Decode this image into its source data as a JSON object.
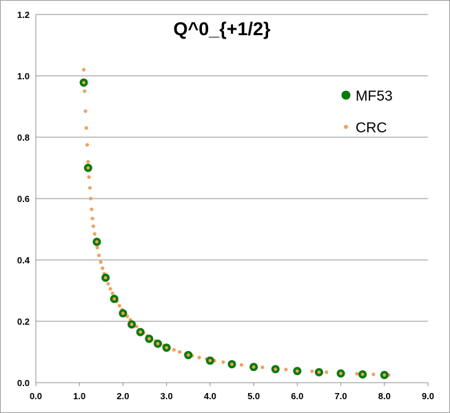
{
  "chart_data": {
    "type": "scatter",
    "title": "Q^0_{+1/2}",
    "xlabel": "",
    "ylabel": "",
    "xlim": [
      0,
      9
    ],
    "ylim": [
      0,
      1.2
    ],
    "x_ticks": [
      "0.0",
      "1.0",
      "2.0",
      "3.0",
      "4.0",
      "5.0",
      "6.0",
      "7.0",
      "8.0",
      "9.0"
    ],
    "y_ticks": [
      "0.0",
      "0.2",
      "0.4",
      "0.6",
      "0.8",
      "1.0",
      "1.2"
    ],
    "grid": "horizontal",
    "legend_position": "right",
    "series": [
      {
        "name": "MF53",
        "color": "#0a7a0a",
        "marker": "large-circle",
        "points": [
          [
            1.1,
            0.978
          ],
          [
            1.2,
            0.7
          ],
          [
            1.4,
            0.459
          ],
          [
            1.6,
            0.342
          ],
          [
            1.8,
            0.273
          ],
          [
            2.0,
            0.226
          ],
          [
            2.2,
            0.19
          ],
          [
            2.4,
            0.165
          ],
          [
            2.6,
            0.143
          ],
          [
            2.8,
            0.127
          ],
          [
            3.0,
            0.114
          ],
          [
            3.5,
            0.09
          ],
          [
            4.0,
            0.072
          ],
          [
            4.5,
            0.06
          ],
          [
            5.0,
            0.051
          ],
          [
            5.5,
            0.044
          ],
          [
            6.0,
            0.038
          ],
          [
            6.5,
            0.034
          ],
          [
            7.0,
            0.03
          ],
          [
            7.5,
            0.027
          ],
          [
            8.0,
            0.025
          ]
        ]
      },
      {
        "name": "CRC",
        "color": "#f0a060",
        "marker": "small-circle",
        "points": [
          [
            1.1,
            1.02
          ],
          [
            1.12,
            0.95
          ],
          [
            1.14,
            0.885
          ],
          [
            1.16,
            0.83
          ],
          [
            1.18,
            0.775
          ],
          [
            1.2,
            0.72
          ],
          [
            1.22,
            0.67
          ],
          [
            1.24,
            0.635
          ],
          [
            1.26,
            0.6
          ],
          [
            1.28,
            0.565
          ],
          [
            1.3,
            0.535
          ],
          [
            1.32,
            0.51
          ],
          [
            1.35,
            0.485
          ],
          [
            1.38,
            0.46
          ],
          [
            1.41,
            0.44
          ],
          [
            1.45,
            0.415
          ],
          [
            1.49,
            0.393
          ],
          [
            1.53,
            0.373
          ],
          [
            1.57,
            0.355
          ],
          [
            1.61,
            0.34
          ],
          [
            1.66,
            0.322
          ],
          [
            1.71,
            0.306
          ],
          [
            1.76,
            0.291
          ],
          [
            1.81,
            0.277
          ],
          [
            1.86,
            0.265
          ],
          [
            1.92,
            0.251
          ],
          [
            1.98,
            0.238
          ],
          [
            2.04,
            0.226
          ],
          [
            2.1,
            0.216
          ],
          [
            2.17,
            0.205
          ],
          [
            2.24,
            0.194
          ],
          [
            2.31,
            0.183
          ],
          [
            2.39,
            0.172
          ],
          [
            2.47,
            0.162
          ],
          [
            2.56,
            0.153
          ],
          [
            2.65,
            0.144
          ],
          [
            2.74,
            0.136
          ],
          [
            2.84,
            0.128
          ],
          [
            2.94,
            0.121
          ],
          [
            3.05,
            0.114
          ],
          [
            3.17,
            0.107
          ],
          [
            3.3,
            0.1
          ],
          [
            3.44,
            0.094
          ],
          [
            3.59,
            0.088
          ],
          [
            3.75,
            0.082
          ],
          [
            3.92,
            0.077
          ],
          [
            4.1,
            0.072
          ],
          [
            4.3,
            0.067
          ],
          [
            4.5,
            0.062
          ],
          [
            4.72,
            0.058
          ],
          [
            4.95,
            0.054
          ],
          [
            5.2,
            0.05
          ],
          [
            5.46,
            0.047
          ],
          [
            5.74,
            0.043
          ],
          [
            6.03,
            0.04
          ],
          [
            6.34,
            0.037
          ],
          [
            6.67,
            0.034
          ],
          [
            7.01,
            0.031
          ],
          [
            7.37,
            0.029
          ],
          [
            7.75,
            0.027
          ],
          [
            8.1,
            0.025
          ]
        ]
      }
    ]
  }
}
